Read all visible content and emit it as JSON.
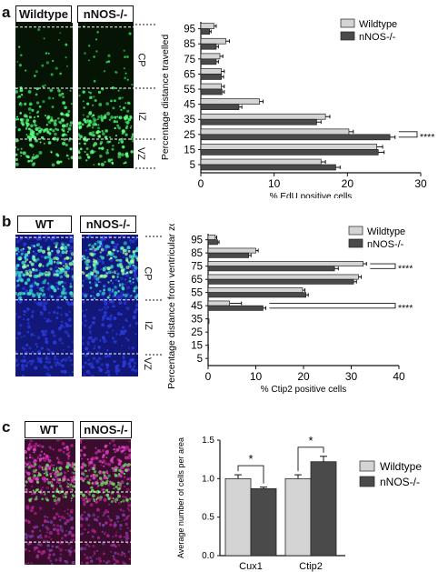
{
  "panels": {
    "a": {
      "letter": "a",
      "micrograph_labels": [
        "Wildtype",
        "nNOS-/-"
      ],
      "zones": [
        "CP",
        "IZ",
        "VZ"
      ]
    },
    "b": {
      "letter": "b",
      "micrograph_labels": [
        "WT",
        "nNOS-/-"
      ],
      "zones": [
        "CP",
        "IZ",
        "VZ"
      ]
    },
    "c": {
      "letter": "c",
      "micrograph_labels": [
        "WT",
        "nNOS-/-"
      ]
    }
  },
  "colors": {
    "wildtype": "#d4d4d4",
    "knockout": "#4a4a4a",
    "micro_a_bg": "#061406",
    "micro_b_bg": "#12187a",
    "micro_c_bg": "#3a0d2e"
  },
  "chart_data": [
    {
      "type": "bar",
      "orientation": "horizontal",
      "categories": [
        "95",
        "85",
        "75",
        "65",
        "55",
        "45",
        "35",
        "25",
        "15",
        "5"
      ],
      "series": [
        {
          "name": "Wildtype",
          "values": [
            1.8,
            3.4,
            2.6,
            2.8,
            2.8,
            8.0,
            17.0,
            20.2,
            24.0,
            16.4
          ],
          "errors": [
            0.3,
            0.5,
            0.4,
            0.4,
            0.4,
            0.5,
            0.6,
            0.6,
            0.8,
            0.6
          ]
        },
        {
          "name": "nNOS-/-",
          "values": [
            1.2,
            2.1,
            2.1,
            2.8,
            2.9,
            5.2,
            15.8,
            25.8,
            24.2,
            18.4
          ],
          "errors": [
            0.2,
            0.3,
            0.3,
            0.3,
            0.3,
            0.4,
            0.6,
            0.7,
            0.8,
            0.6
          ]
        }
      ],
      "significance": [
        {
          "category": "25",
          "label": "****"
        }
      ],
      "xlabel": "% EdU positive cells",
      "ylabel": "Percentage distance travelled",
      "xlim": [
        0,
        30
      ],
      "xticks": [
        "0",
        "10",
        "20",
        "30"
      ],
      "legend": "top-right"
    },
    {
      "type": "bar",
      "orientation": "horizontal",
      "categories": [
        "95",
        "85",
        "75",
        "65",
        "55",
        "45",
        "35",
        "25",
        "15",
        "5"
      ],
      "series": [
        {
          "name": "Wildtype",
          "values": [
            1.5,
            10.0,
            32.5,
            31.5,
            19.8,
            4.5,
            0,
            0,
            0,
            0
          ],
          "errors": [
            0.3,
            0.5,
            0.7,
            0.6,
            0.5,
            2.5,
            0,
            0,
            0,
            0
          ]
        },
        {
          "name": "nNOS-/-",
          "values": [
            2.0,
            8.5,
            26.5,
            30.5,
            20.5,
            11.5,
            0.2,
            0,
            0.1,
            0
          ],
          "errors": [
            0.3,
            0.5,
            0.8,
            0.6,
            0.5,
            0.6,
            0,
            0,
            0,
            0
          ]
        }
      ],
      "significance": [
        {
          "category": "75",
          "label": "****"
        },
        {
          "category": "45",
          "label": "****"
        }
      ],
      "xlabel": "% Ctip2 positive cells",
      "ylabel": "Percentage distance from ventricular zone",
      "xlim": [
        0,
        40
      ],
      "xticks": [
        "0",
        "10",
        "20",
        "30",
        "40"
      ],
      "legend": "top-right"
    },
    {
      "type": "bar",
      "categories": [
        "Cux1",
        "Ctip2"
      ],
      "series": [
        {
          "name": "Wildtype",
          "values": [
            1.0,
            1.0
          ],
          "errors": [
            0.05,
            0.05
          ]
        },
        {
          "name": "nNOS-/-",
          "values": [
            0.87,
            1.22
          ],
          "errors": [
            0.02,
            0.07
          ]
        }
      ],
      "significance": [
        {
          "category": "Cux1",
          "label": "*"
        },
        {
          "category": "Ctip2",
          "label": "*"
        }
      ],
      "ylabel": "Average number of cells per area",
      "ylim": [
        0,
        1.5
      ],
      "yticks": [
        "0.0",
        "0.5",
        "1.0",
        "1.5"
      ],
      "legend": "right"
    }
  ]
}
